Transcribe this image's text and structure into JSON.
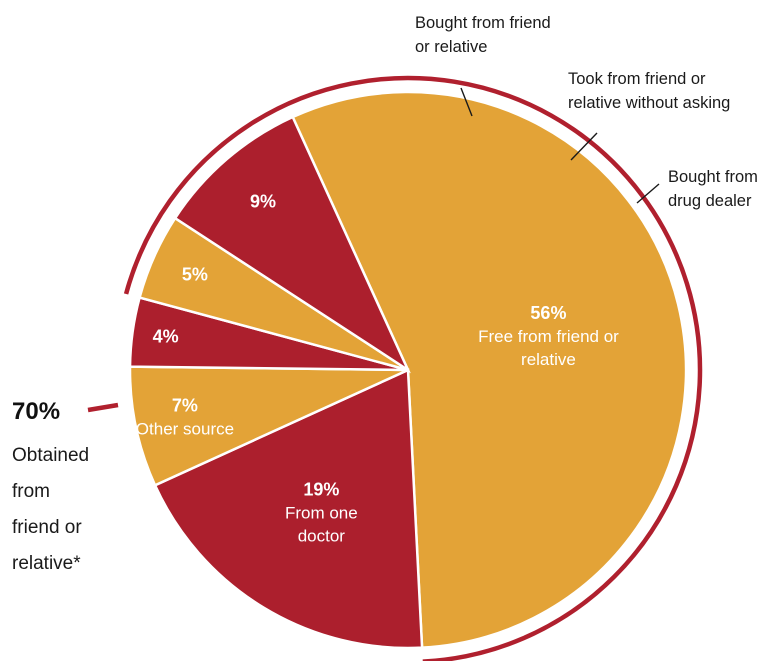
{
  "chart_data": {
    "type": "pie",
    "colors": {
      "gold": "#e3a337",
      "red": "#ac1f2d"
    },
    "slices": [
      {
        "label": "Free from friend or relative",
        "pct_label": "56%",
        "value": 56,
        "color": "gold",
        "label_lines": [
          "Free from friend or",
          "relative"
        ]
      },
      {
        "label": "From one doctor",
        "pct_label": "19%",
        "value": 19,
        "color": "red",
        "label_lines": [
          "From one",
          "doctor"
        ]
      },
      {
        "label": "Other source",
        "pct_label": "7%",
        "value": 7,
        "color": "gold",
        "label_lines": [
          "Other source"
        ]
      },
      {
        "label": "Bought from drug dealer",
        "pct_label": "4%",
        "value": 4,
        "color": "red",
        "label_lines": [
          "Bought from",
          "drug dealer"
        ]
      },
      {
        "label": "Took from friend or relative without asking",
        "pct_label": "5%",
        "value": 5,
        "color": "gold",
        "label_lines": [
          "Took from friend or",
          "relative without asking"
        ]
      },
      {
        "label": "Bought from friend or relative",
        "pct_label": "9%",
        "value": 9,
        "color": "red",
        "label_lines": [
          "Bought from friend",
          "or relative"
        ]
      }
    ],
    "group_annotation": {
      "pct_label": "70%",
      "label_lines": [
        "Obtained",
        "from",
        "friend or",
        "relative*"
      ],
      "covers": [
        "Free from friend or relative",
        "Took from friend or relative without asking",
        "Bought from friend or relative"
      ]
    }
  }
}
